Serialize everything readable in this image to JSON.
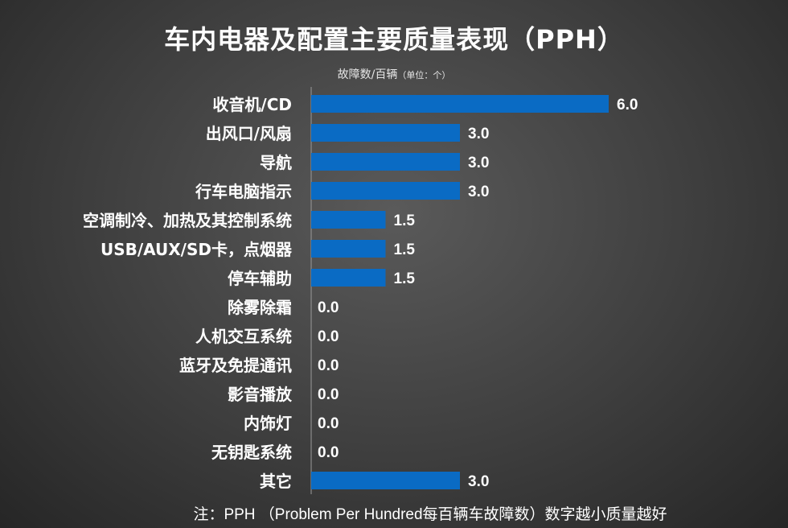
{
  "title": "车内电器及配置主要质量表现（PPH）",
  "unit_label": "故障数/百辆",
  "unit_note": "（单位：个）",
  "footnote": "注：PPH （Problem Per Hundred每百辆车故障数）数字越小质量越好",
  "colors": {
    "bar": "#0a6bc4",
    "text": "#ffffff"
  },
  "chart_data": {
    "type": "bar",
    "orientation": "horizontal",
    "title": "车内电器及配置主要质量表现（PPH）",
    "xlabel": "故障数/百辆（单位：个）",
    "categories": [
      "收音机/CD",
      "出风口/风扇",
      "导航",
      "行车电脑指示",
      "空调制冷、加热及其控制系统",
      "USB/AUX/SD卡，点烟器",
      "停车辅助",
      "除雾除霜",
      "人机交互系统",
      "蓝牙及免提通讯",
      "影音播放",
      "内饰灯",
      "无钥匙系统",
      "其它"
    ],
    "values": [
      6.0,
      3.0,
      3.0,
      3.0,
      1.5,
      1.5,
      1.5,
      0.0,
      0.0,
      0.0,
      0.0,
      0.0,
      0.0,
      3.0
    ],
    "value_labels": [
      "6.0",
      "3.0",
      "3.0",
      "3.0",
      "1.5",
      "1.5",
      "1.5",
      "0.0",
      "0.0",
      "0.0",
      "0.0",
      "0.0",
      "0.0",
      "3.0"
    ],
    "xlim": [
      0,
      6
    ],
    "grid": false,
    "legend": "none"
  }
}
